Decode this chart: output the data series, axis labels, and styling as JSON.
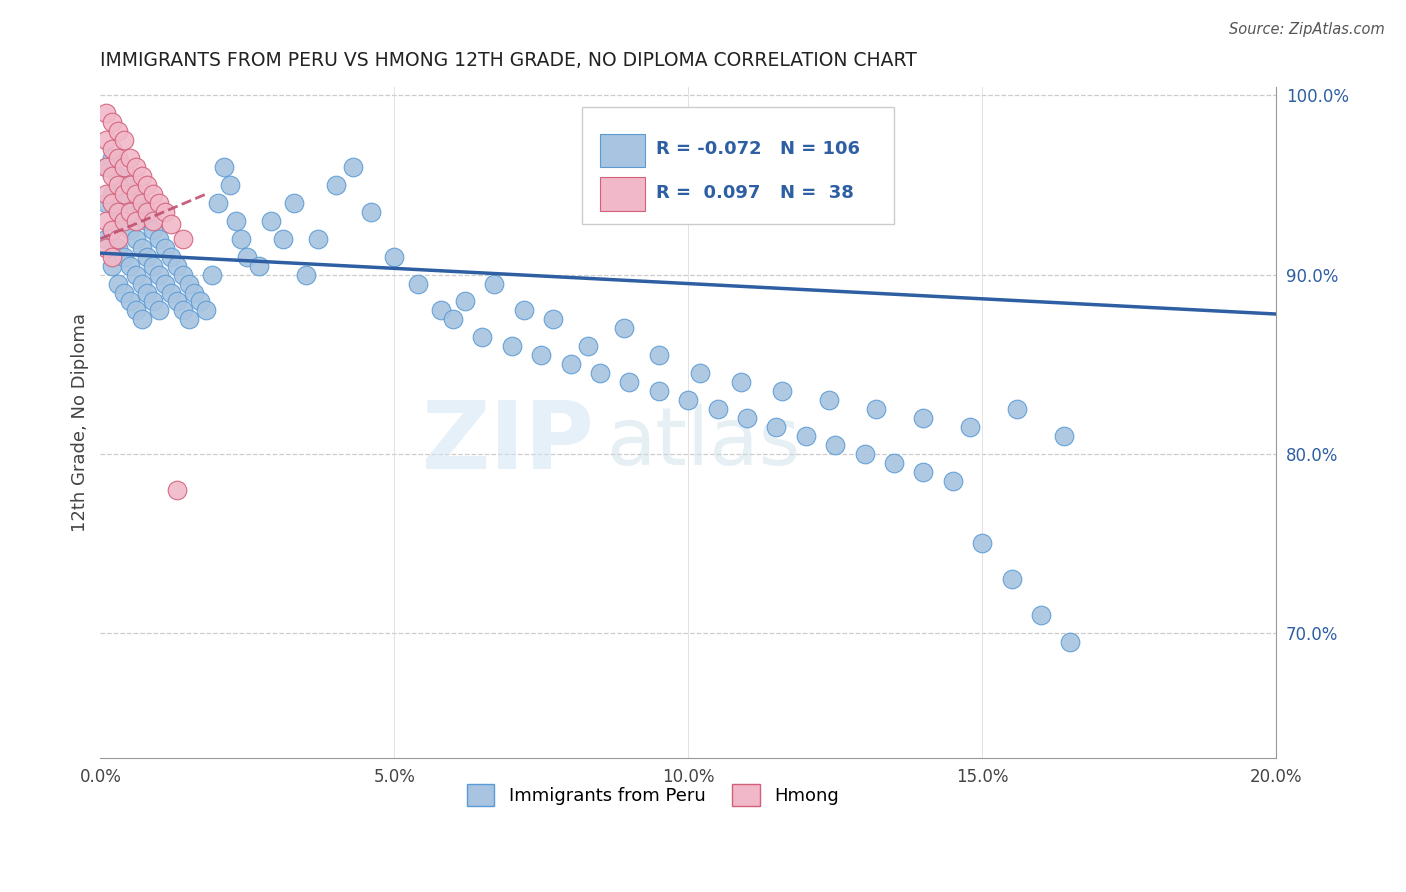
{
  "title": "IMMIGRANTS FROM PERU VS HMONG 12TH GRADE, NO DIPLOMA CORRELATION CHART",
  "source": "Source: ZipAtlas.com",
  "ylabel": "12th Grade, No Diploma",
  "x_min": 0.0,
  "x_max": 0.2,
  "y_min": 0.63,
  "y_max": 1.005,
  "x_ticks": [
    0.0,
    0.05,
    0.1,
    0.15,
    0.2
  ],
  "x_tick_labels": [
    "0.0%",
    "5.0%",
    "10.0%",
    "15.0%",
    "20.0%"
  ],
  "y_ticks_right": [
    0.7,
    0.8,
    0.9,
    1.0
  ],
  "y_tick_labels_right": [
    "70.0%",
    "80.0%",
    "90.0%",
    "100.0%"
  ],
  "legend_r_peru": "-0.072",
  "legend_n_peru": "106",
  "legend_r_hmong": "0.097",
  "legend_n_hmong": "38",
  "peru_color": "#a8c4e0",
  "peru_edge_color": "#5b9bd5",
  "hmong_color": "#f0b8c8",
  "hmong_edge_color": "#d45f7a",
  "peru_line_color": "#2e5fa3",
  "hmong_line_color": "#c05070",
  "watermark_zip": "ZIP",
  "watermark_atlas": "atlas",
  "peru_scatter_x": [
    0.001,
    0.001,
    0.001,
    0.002,
    0.002,
    0.002,
    0.002,
    0.003,
    0.003,
    0.003,
    0.003,
    0.004,
    0.004,
    0.004,
    0.004,
    0.005,
    0.005,
    0.005,
    0.005,
    0.006,
    0.006,
    0.006,
    0.006,
    0.007,
    0.007,
    0.007,
    0.007,
    0.008,
    0.008,
    0.008,
    0.009,
    0.009,
    0.009,
    0.01,
    0.01,
    0.01,
    0.011,
    0.011,
    0.012,
    0.012,
    0.013,
    0.013,
    0.014,
    0.014,
    0.015,
    0.015,
    0.016,
    0.017,
    0.018,
    0.019,
    0.02,
    0.021,
    0.022,
    0.023,
    0.024,
    0.025,
    0.027,
    0.029,
    0.031,
    0.033,
    0.035,
    0.037,
    0.04,
    0.043,
    0.046,
    0.05,
    0.054,
    0.058,
    0.062,
    0.067,
    0.072,
    0.077,
    0.083,
    0.089,
    0.095,
    0.102,
    0.109,
    0.116,
    0.124,
    0.132,
    0.14,
    0.148,
    0.156,
    0.164,
    0.06,
    0.065,
    0.07,
    0.075,
    0.08,
    0.085,
    0.09,
    0.095,
    0.1,
    0.105,
    0.11,
    0.115,
    0.12,
    0.125,
    0.13,
    0.135,
    0.14,
    0.145,
    0.15,
    0.155,
    0.16,
    0.165
  ],
  "peru_scatter_y": [
    0.96,
    0.94,
    0.92,
    0.965,
    0.945,
    0.925,
    0.905,
    0.955,
    0.935,
    0.915,
    0.895,
    0.95,
    0.93,
    0.91,
    0.89,
    0.945,
    0.925,
    0.905,
    0.885,
    0.94,
    0.92,
    0.9,
    0.88,
    0.935,
    0.915,
    0.895,
    0.875,
    0.93,
    0.91,
    0.89,
    0.925,
    0.905,
    0.885,
    0.92,
    0.9,
    0.88,
    0.915,
    0.895,
    0.91,
    0.89,
    0.905,
    0.885,
    0.9,
    0.88,
    0.895,
    0.875,
    0.89,
    0.885,
    0.88,
    0.9,
    0.94,
    0.96,
    0.95,
    0.93,
    0.92,
    0.91,
    0.905,
    0.93,
    0.92,
    0.94,
    0.9,
    0.92,
    0.95,
    0.96,
    0.935,
    0.91,
    0.895,
    0.88,
    0.885,
    0.895,
    0.88,
    0.875,
    0.86,
    0.87,
    0.855,
    0.845,
    0.84,
    0.835,
    0.83,
    0.825,
    0.82,
    0.815,
    0.825,
    0.81,
    0.875,
    0.865,
    0.86,
    0.855,
    0.85,
    0.845,
    0.84,
    0.835,
    0.83,
    0.825,
    0.82,
    0.815,
    0.81,
    0.805,
    0.8,
    0.795,
    0.79,
    0.785,
    0.75,
    0.73,
    0.71,
    0.695
  ],
  "hmong_scatter_x": [
    0.001,
    0.001,
    0.001,
    0.001,
    0.001,
    0.001,
    0.002,
    0.002,
    0.002,
    0.002,
    0.002,
    0.002,
    0.003,
    0.003,
    0.003,
    0.003,
    0.003,
    0.004,
    0.004,
    0.004,
    0.004,
    0.005,
    0.005,
    0.005,
    0.006,
    0.006,
    0.006,
    0.007,
    0.007,
    0.008,
    0.008,
    0.009,
    0.009,
    0.01,
    0.011,
    0.012,
    0.013,
    0.014
  ],
  "hmong_scatter_y": [
    0.99,
    0.975,
    0.96,
    0.945,
    0.93,
    0.915,
    0.985,
    0.97,
    0.955,
    0.94,
    0.925,
    0.91,
    0.98,
    0.965,
    0.95,
    0.935,
    0.92,
    0.975,
    0.96,
    0.945,
    0.93,
    0.965,
    0.95,
    0.935,
    0.96,
    0.945,
    0.93,
    0.955,
    0.94,
    0.95,
    0.935,
    0.945,
    0.93,
    0.94,
    0.935,
    0.928,
    0.78,
    0.92
  ]
}
